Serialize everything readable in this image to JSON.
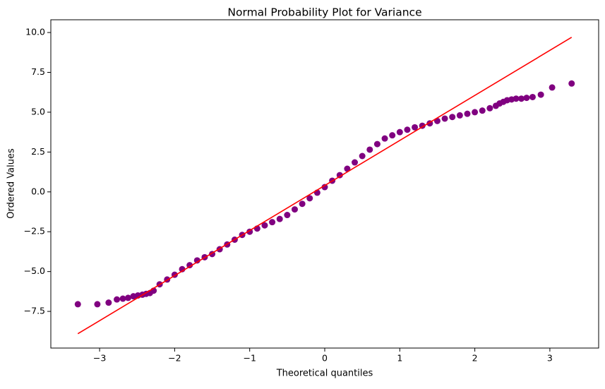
{
  "chart_data": {
    "type": "scatter",
    "title": "Normal Probability Plot for Variance",
    "xlabel": "Theoretical quantiles",
    "ylabel": "Ordered Values",
    "xlim": [
      -3.65,
      3.65
    ],
    "ylim": [
      -9.8,
      10.8
    ],
    "xticks": [
      {
        "value": -3,
        "label": "−3"
      },
      {
        "value": -2,
        "label": "−2"
      },
      {
        "value": -1,
        "label": "−1"
      },
      0,
      1,
      2,
      3
    ],
    "yticks": [
      {
        "value": -7.5,
        "label": "−7.5"
      },
      {
        "value": -5,
        "label": "−5.0"
      },
      {
        "value": -2.5,
        "label": "−2.5"
      },
      {
        "value": 0,
        "label": "0.0"
      },
      2.5,
      {
        "value": 5,
        "label": "5.0"
      },
      7.5,
      {
        "value": 10,
        "label": "10.0"
      }
    ],
    "grid": false,
    "series": [
      {
        "color": "#800080",
        "mode": "markers",
        "x": [
          -3.29,
          -3.03,
          -2.88,
          -2.77,
          -2.69,
          -2.62,
          -2.55,
          -2.49,
          -2.43,
          -2.38,
          -2.33,
          -2.28,
          -2.2,
          -2.1,
          -2.0,
          -1.9,
          -1.8,
          -1.7,
          -1.6,
          -1.5,
          -1.4,
          -1.3,
          -1.2,
          -1.1,
          -1.0,
          -0.9,
          -0.8,
          -0.7,
          -0.6,
          -0.5,
          -0.4,
          -0.3,
          -0.2,
          -0.1,
          0,
          0.1,
          0.2,
          0.3,
          0.4,
          0.5,
          0.6,
          0.7,
          0.8,
          0.9,
          1.0,
          1.1,
          1.2,
          1.3,
          1.4,
          1.5,
          1.6,
          1.7,
          1.8,
          1.9,
          2.0,
          2.1,
          2.2,
          2.28,
          2.33,
          2.38,
          2.43,
          2.49,
          2.55,
          2.62,
          2.69,
          2.77,
          2.88,
          3.03,
          3.29
        ],
        "values": [
          -7.05,
          -7.05,
          -6.95,
          -6.75,
          -6.7,
          -6.65,
          -6.55,
          -6.5,
          -6.45,
          -6.4,
          -6.35,
          -6.2,
          -5.8,
          -5.5,
          -5.2,
          -4.85,
          -4.6,
          -4.3,
          -4.1,
          -3.9,
          -3.6,
          -3.3,
          -3.0,
          -2.7,
          -2.5,
          -2.3,
          -2.1,
          -1.9,
          -1.7,
          -1.45,
          -1.1,
          -0.75,
          -0.4,
          -0.05,
          0.3,
          0.7,
          1.05,
          1.45,
          1.85,
          2.25,
          2.65,
          3.0,
          3.35,
          3.55,
          3.75,
          3.9,
          4.05,
          4.15,
          4.3,
          4.45,
          4.6,
          4.7,
          4.8,
          4.9,
          5.0,
          5.1,
          5.25,
          5.4,
          5.55,
          5.65,
          5.75,
          5.8,
          5.85,
          5.85,
          5.9,
          5.95,
          6.1,
          6.55,
          6.8
        ]
      },
      {
        "color": "#ff0000",
        "mode": "line",
        "x": [
          -3.29,
          3.29
        ],
        "values": [
          -8.9,
          9.7
        ]
      }
    ]
  }
}
